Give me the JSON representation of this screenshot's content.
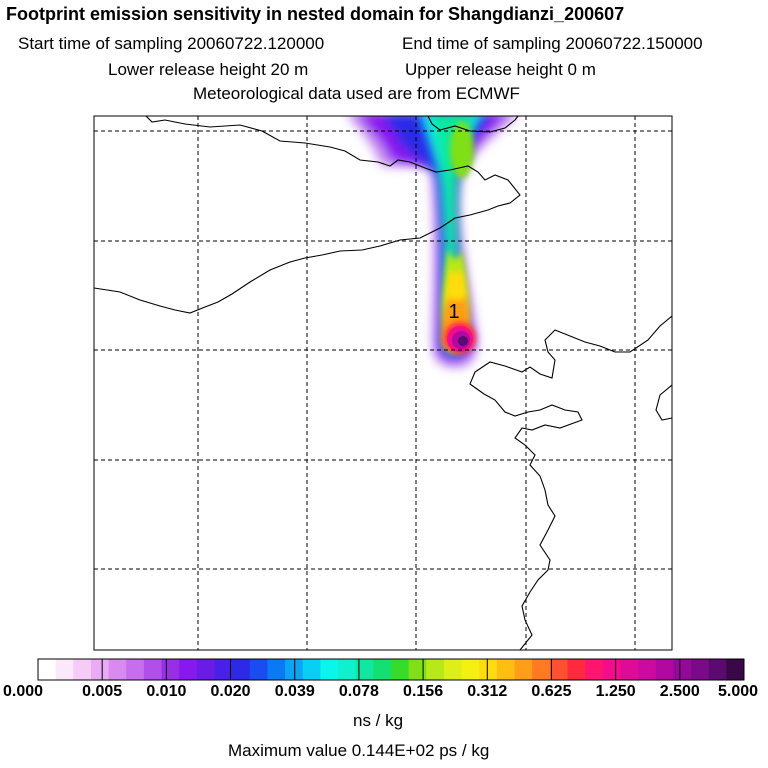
{
  "header": {
    "title": "Footprint emission sensitivity in nested domain for Shangdianzi_200607",
    "start_label": "Start time of sampling 20060722.120000",
    "end_label": "End time of sampling 20060722.150000",
    "lower_label": "Lower release height   20 m",
    "upper_label": "Upper release height    0 m",
    "met_label": "Meteorological data used are from ECMWF"
  },
  "map": {
    "release_marker": "1",
    "colors": {
      "frame": "#000000",
      "grid": "#000000",
      "coast": "#000000"
    }
  },
  "colorbar": {
    "tick_labels": [
      "0.000",
      "0.005",
      "0.010",
      "0.020",
      "0.039",
      "0.078",
      "0.156",
      "0.312",
      "0.625",
      "1.250",
      "2.500",
      "5.000"
    ],
    "colors": [
      "#ffffff",
      "#fbe8fb",
      "#f5ccf8",
      "#eaaaf4",
      "#d98af0",
      "#c76ded",
      "#b24ee9",
      "#9a2ee6",
      "#8818f0",
      "#6a1ce6",
      "#4a20e8",
      "#2c2ae8",
      "#1a4df0",
      "#0a7af4",
      "#0aa6f4",
      "#08cff4",
      "#0af5ee",
      "#0ff0cc",
      "#10e8a2",
      "#12e070",
      "#36dc2a",
      "#80e018",
      "#b8e818",
      "#dcf018",
      "#f4f010",
      "#ffdc10",
      "#ffbe10",
      "#ff9e18",
      "#ff7a20",
      "#ff5030",
      "#ff2a40",
      "#ff1470",
      "#f40c8c",
      "#e00a98",
      "#cc0aa0",
      "#b008a0",
      "#940a98",
      "#7a0a88",
      "#5a0a70",
      "#3a0848"
    ],
    "units": "ns / kg",
    "max_label": "Maximum value  0.144E+02 ps / kg"
  }
}
